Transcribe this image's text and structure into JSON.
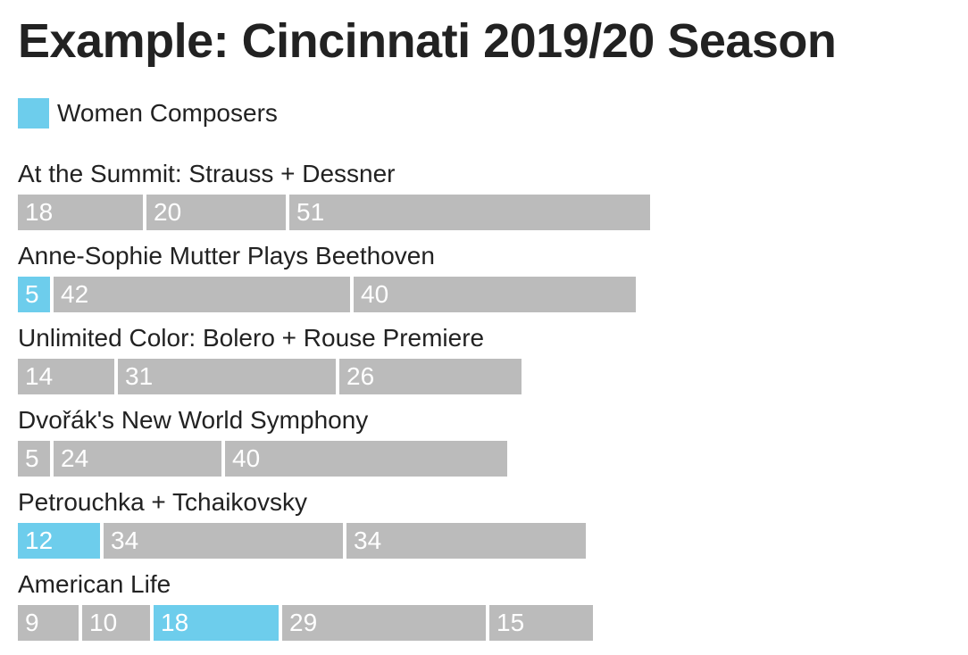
{
  "title": "Example: Cincinnati 2019/20 Season",
  "legend": {
    "label": "Women Composers"
  },
  "colors": {
    "women": "#6dcdec",
    "other": "#bbbbbb"
  },
  "chart_data": {
    "type": "bar",
    "title": "Example: Cincinnati 2019/20 Season",
    "orientation": "horizontal",
    "stacked": true,
    "legend": [
      {
        "label": "Women Composers",
        "color": "#6dcdec"
      }
    ],
    "concerts": [
      {
        "name": "At the Summit: Strauss + Dessner",
        "pieces": [
          {
            "value": 18,
            "women_composer": false
          },
          {
            "value": 20,
            "women_composer": false
          },
          {
            "value": 51,
            "women_composer": false
          }
        ]
      },
      {
        "name": "Anne-Sophie Mutter Plays Beethoven",
        "pieces": [
          {
            "value": 5,
            "women_composer": true
          },
          {
            "value": 42,
            "women_composer": false
          },
          {
            "value": 40,
            "women_composer": false
          }
        ]
      },
      {
        "name": "Unlimited Color: Bolero + Rouse Premiere",
        "pieces": [
          {
            "value": 14,
            "women_composer": false
          },
          {
            "value": 31,
            "women_composer": false
          },
          {
            "value": 26,
            "women_composer": false
          }
        ]
      },
      {
        "name": "Dvořák's New World Symphony",
        "pieces": [
          {
            "value": 5,
            "women_composer": false
          },
          {
            "value": 24,
            "women_composer": false
          },
          {
            "value": 40,
            "women_composer": false
          }
        ]
      },
      {
        "name": "Petrouchka + Tchaikovsky",
        "pieces": [
          {
            "value": 12,
            "women_composer": true
          },
          {
            "value": 34,
            "women_composer": false
          },
          {
            "value": 34,
            "women_composer": false
          }
        ]
      },
      {
        "name": "American Life",
        "pieces": [
          {
            "value": 9,
            "women_composer": false
          },
          {
            "value": 10,
            "women_composer": false
          },
          {
            "value": 18,
            "women_composer": true
          },
          {
            "value": 29,
            "women_composer": false
          },
          {
            "value": 15,
            "women_composer": false
          }
        ]
      }
    ]
  }
}
